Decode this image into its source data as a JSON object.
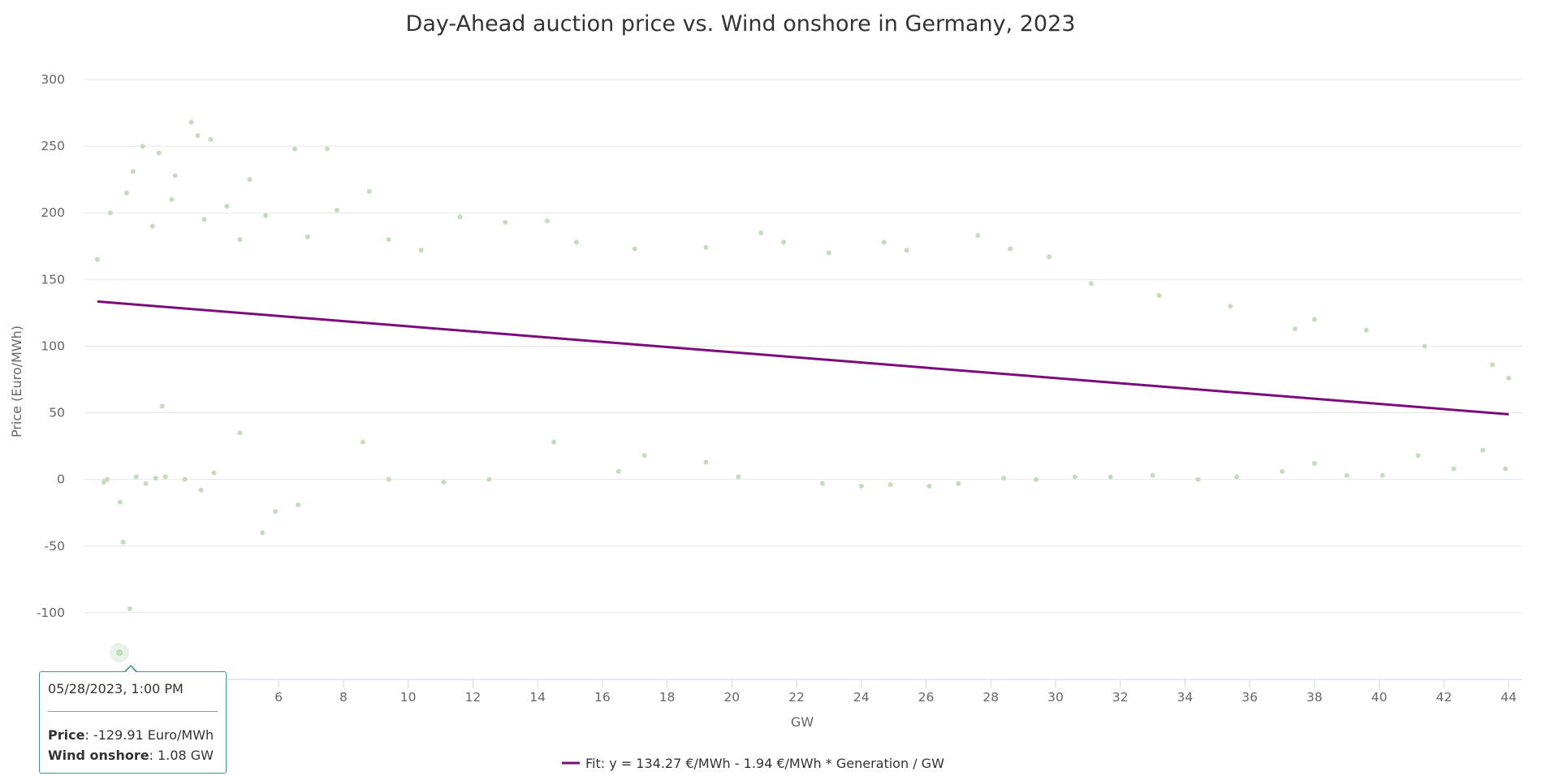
{
  "chart_data": {
    "type": "scatter",
    "title": "Day-Ahead auction price vs. Wind onshore in Germany, 2023",
    "xlabel": "GW",
    "ylabel": "Price (Euro/MWh)",
    "xlim": [
      0,
      44.4
    ],
    "ylim": [
      -150,
      300
    ],
    "x_ticks": [
      6,
      8,
      10,
      12,
      14,
      16,
      18,
      20,
      22,
      24,
      26,
      28,
      30,
      32,
      34,
      36,
      38,
      40,
      42,
      44
    ],
    "y_ticks": [
      300,
      250,
      200,
      150,
      100,
      50,
      0,
      -50,
      -100
    ],
    "grid": true,
    "series": [
      {
        "name": "Day-Ahead auction price vs. Wind onshore",
        "color": "#c4dcbd",
        "points": [
          [
            1.08,
            -129.91
          ],
          [
            1.4,
            -97
          ],
          [
            1.2,
            -47
          ],
          [
            1.1,
            -17
          ],
          [
            0.6,
            -2
          ],
          [
            0.7,
            0
          ],
          [
            1.6,
            2
          ],
          [
            1.9,
            -3
          ],
          [
            2.2,
            1
          ],
          [
            2.5,
            2
          ],
          [
            3.1,
            0
          ],
          [
            3.6,
            -8
          ],
          [
            4.0,
            5
          ],
          [
            5.5,
            -40
          ],
          [
            5.9,
            -24
          ],
          [
            6.6,
            -19
          ],
          [
            0.4,
            165
          ],
          [
            0.8,
            200
          ],
          [
            1.3,
            215
          ],
          [
            1.8,
            250
          ],
          [
            2.3,
            245
          ],
          [
            2.8,
            228
          ],
          [
            3.3,
            268
          ],
          [
            3.5,
            258
          ],
          [
            3.9,
            255
          ],
          [
            4.4,
            205
          ],
          [
            5.1,
            225
          ],
          [
            6.5,
            248
          ],
          [
            7.5,
            248
          ],
          [
            8.8,
            216
          ],
          [
            1.5,
            231
          ],
          [
            2.1,
            190
          ],
          [
            2.7,
            210
          ],
          [
            3.7,
            195
          ],
          [
            4.8,
            180
          ],
          [
            5.6,
            198
          ],
          [
            6.9,
            182
          ],
          [
            7.8,
            202
          ],
          [
            9.4,
            180
          ],
          [
            10.4,
            172
          ],
          [
            11.6,
            197
          ],
          [
            13.0,
            193
          ],
          [
            14.3,
            194
          ],
          [
            15.2,
            178
          ],
          [
            17.0,
            173
          ],
          [
            19.2,
            174
          ],
          [
            20.9,
            185
          ],
          [
            21.6,
            178
          ],
          [
            23.0,
            170
          ],
          [
            24.7,
            178
          ],
          [
            25.4,
            172
          ],
          [
            27.6,
            183
          ],
          [
            28.6,
            173
          ],
          [
            29.8,
            167
          ],
          [
            31.1,
            147
          ],
          [
            33.2,
            138
          ],
          [
            35.4,
            130
          ],
          [
            37.4,
            113
          ],
          [
            38.0,
            120
          ],
          [
            39.6,
            112
          ],
          [
            41.4,
            100
          ],
          [
            43.5,
            86
          ],
          [
            44.0,
            76
          ],
          [
            43.2,
            22
          ],
          [
            43.9,
            8
          ],
          [
            42.3,
            8
          ],
          [
            41.2,
            18
          ],
          [
            40.1,
            3
          ],
          [
            39.0,
            3
          ],
          [
            38.0,
            12
          ],
          [
            37.0,
            6
          ],
          [
            35.6,
            2
          ],
          [
            34.4,
            0
          ],
          [
            33.0,
            3
          ],
          [
            31.7,
            2
          ],
          [
            30.6,
            2
          ],
          [
            29.4,
            0
          ],
          [
            28.4,
            1
          ],
          [
            27.0,
            -3
          ],
          [
            26.1,
            -5
          ],
          [
            24.9,
            -4
          ],
          [
            24.0,
            -5
          ],
          [
            22.8,
            -3
          ],
          [
            20.2,
            2
          ],
          [
            19.2,
            13
          ],
          [
            17.3,
            18
          ],
          [
            16.5,
            6
          ],
          [
            14.5,
            28
          ],
          [
            12.5,
            0
          ],
          [
            11.1,
            -2
          ],
          [
            9.4,
            0
          ],
          [
            8.6,
            28
          ],
          [
            4.8,
            35
          ],
          [
            2.4,
            55
          ]
        ]
      },
      {
        "name": "Fit: y = 134.27 €/MWh - 1.94 €/MWh * Generation / GW",
        "color": "#7b0d7b",
        "type": "line",
        "intercept": 134.27,
        "slope": -1.94,
        "x_range": [
          0.4,
          44.0
        ]
      }
    ],
    "legend": {
      "placement": "bottom-center"
    },
    "tooltip": {
      "date": "05/28/2023, 1:00 PM",
      "price_label": "Price",
      "price_value": ": -129.91 Euro/MWh",
      "wind_label": "Wind onshore",
      "wind_value": ": 1.08 GW"
    }
  }
}
